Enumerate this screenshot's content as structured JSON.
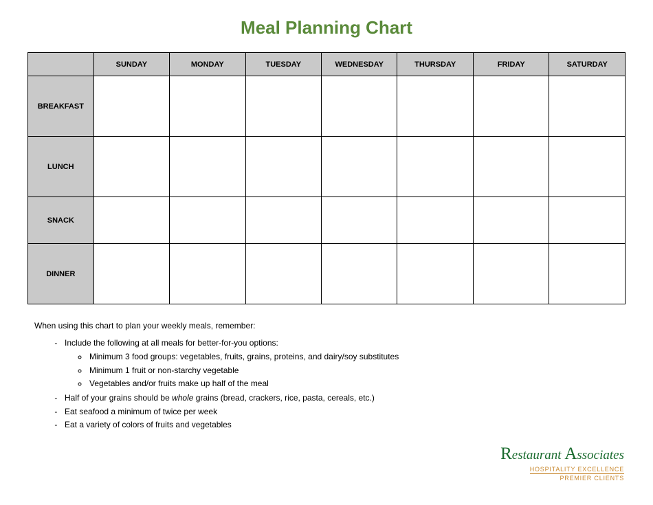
{
  "title": "Meal Planning Chart",
  "table": {
    "columns": [
      "SUNDAY",
      "MONDAY",
      "TUESDAY",
      "WEDNESDAY",
      "THURSDAY",
      "FRIDAY",
      "SATURDAY"
    ],
    "rows": [
      "BREAKFAST",
      "LUNCH",
      "SNACK",
      "DINNER"
    ],
    "header_bg": "#c9c9c9",
    "border_color": "#000000",
    "cell_bg": "#ffffff",
    "header_fontsize": 11,
    "row_heights": {
      "BREAKFAST": 88,
      "LUNCH": 88,
      "SNACK": 68,
      "DINNER": 88
    }
  },
  "notes": {
    "intro": "When using this chart to plan your weekly meals, remember:",
    "items": [
      {
        "text": "Include the following at all meals for better-for-you options:",
        "sub": [
          "Minimum 3 food groups: vegetables, fruits, grains, proteins, and dairy/soy substitutes",
          "Minimum 1 fruit or non-starchy vegetable",
          "Vegetables and/or fruits make up half of the meal"
        ]
      },
      {
        "text_pre": "Half of your grains should be ",
        "text_em": "whole",
        "text_post": " grains (bread, crackers, rice, pasta, cereals, etc.)"
      },
      {
        "text": "Eat seafood a minimum of twice per week"
      },
      {
        "text": "Eat a variety of colors of fruits and vegetables"
      }
    ]
  },
  "logo": {
    "line1_cap1": "R",
    "line1_seg1": "estaurant ",
    "line1_cap2": "A",
    "line1_seg2": "ssociates",
    "line2": "HOSPITALITY EXCELLENCE",
    "line3": "PREMIER CLIENTS",
    "main_color": "#1a6b2e",
    "sub_color": "#c8882e"
  },
  "colors": {
    "title": "#5a8a3a",
    "background": "#ffffff"
  }
}
